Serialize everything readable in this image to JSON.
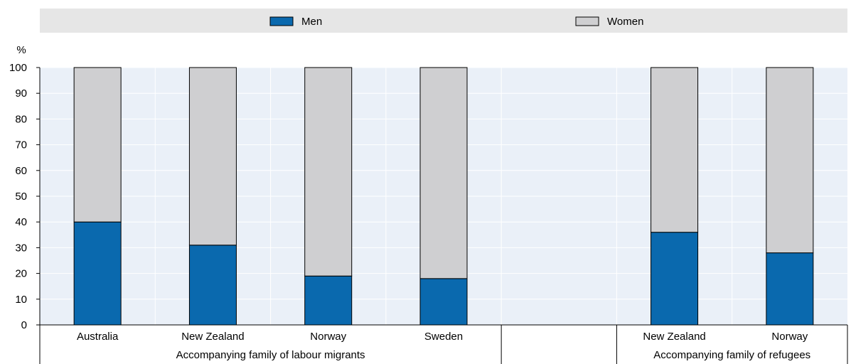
{
  "chart_data": {
    "type": "bar",
    "stacked": true,
    "ylabel": "%",
    "ylim": [
      0,
      100
    ],
    "yticks": [
      0,
      10,
      20,
      30,
      40,
      50,
      60,
      70,
      80,
      90,
      100
    ],
    "grid": true,
    "legend_position": "top",
    "categories": [
      "Australia",
      "New Zealand",
      "Norway",
      "Sweden",
      "",
      "New Zealand",
      "Norway"
    ],
    "groups": [
      {
        "label": "Accompanying family of labour migrants",
        "categories": [
          "Australia",
          "New Zealand",
          "Norway",
          "Sweden"
        ]
      },
      {
        "label": "",
        "categories": [
          ""
        ]
      },
      {
        "label": "Accompanying family of refugees",
        "categories": [
          "New Zealand",
          "Norway"
        ]
      }
    ],
    "series": [
      {
        "name": "Men",
        "color": "#0a69ae",
        "values": [
          40,
          31,
          19,
          18,
          null,
          36,
          28
        ]
      },
      {
        "name": "Women",
        "color": "#cfcfd1",
        "values": [
          60,
          69,
          81,
          82,
          null,
          64,
          72
        ]
      }
    ]
  },
  "colors": {
    "plot_background": "#eaf0f8",
    "legend_background": "#e6e6e6",
    "gridline": "#ffffff"
  }
}
